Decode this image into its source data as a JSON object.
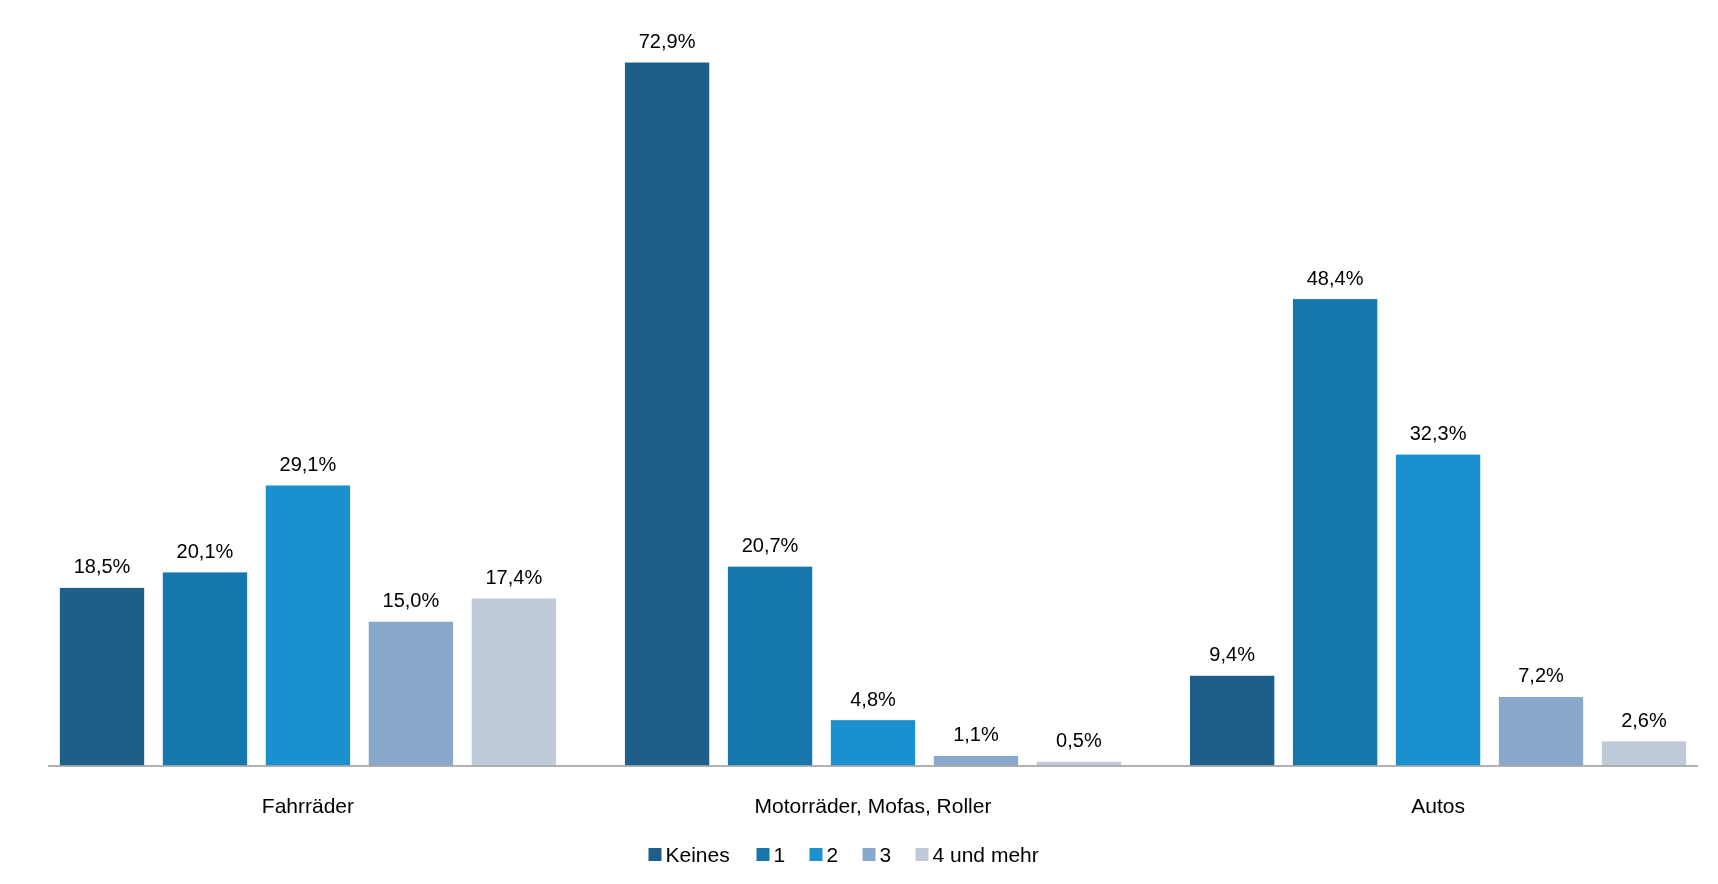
{
  "chart_data": {
    "type": "bar",
    "categories": [
      "Fahrräder",
      "Motorräder, Mofas, Roller",
      "Autos"
    ],
    "series": [
      {
        "name": "Keines",
        "color": "#1d5f88",
        "values": [
          18.5,
          72.9,
          9.4
        ],
        "value_labels": [
          "18,5%",
          "72,9%",
          "9,4%"
        ]
      },
      {
        "name": "1",
        "color": "#1677ad",
        "values": [
          20.1,
          20.7,
          48.4
        ],
        "value_labels": [
          "20,1%",
          "20,7%",
          "48,4%"
        ]
      },
      {
        "name": "2",
        "color": "#1a90cf",
        "values": [
          29.1,
          4.8,
          32.3
        ],
        "value_labels": [
          "29,1%",
          "4,8%",
          "32,3%"
        ]
      },
      {
        "name": "3",
        "color": "#88a9cb",
        "values": [
          15.0,
          1.1,
          7.2
        ],
        "value_labels": [
          "15,0%",
          "1,1%",
          "7,2%"
        ]
      },
      {
        "name": "4 und mehr",
        "color": "#bfcbd8",
        "values": [
          17.4,
          0.5,
          2.6
        ],
        "value_labels": [
          "17,4%",
          "0,5%",
          "2,6%"
        ]
      }
    ],
    "legend": "bottom"
  }
}
